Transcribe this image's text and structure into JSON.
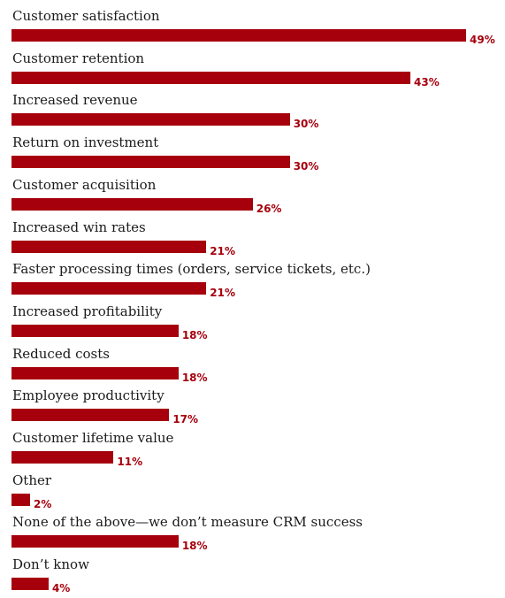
{
  "chart_data": {
    "type": "bar",
    "orientation": "horizontal",
    "categories": [
      "Customer satisfaction",
      "Customer retention",
      "Increased revenue",
      "Return on investment",
      "Customer acquisition",
      "Increased win rates",
      "Faster processing times (orders, service tickets, etc.)",
      "Increased profitability",
      "Reduced costs",
      "Employee productivity",
      "Customer lifetime value",
      "Other",
      "None of the above—we don’t measure CRM success",
      "Don’t know"
    ],
    "values": [
      49,
      43,
      30,
      30,
      26,
      21,
      21,
      18,
      18,
      17,
      11,
      2,
      18,
      4
    ],
    "value_labels": [
      "49%",
      "43%",
      "30%",
      "30%",
      "26%",
      "21%",
      "21%",
      "18%",
      "18%",
      "17%",
      "11%",
      "2%",
      "18%",
      "4%"
    ],
    "xlim": [
      0,
      49
    ],
    "grid": false,
    "legend": "none",
    "bar_color": "#a6000d",
    "label_color": "#a6000d"
  }
}
